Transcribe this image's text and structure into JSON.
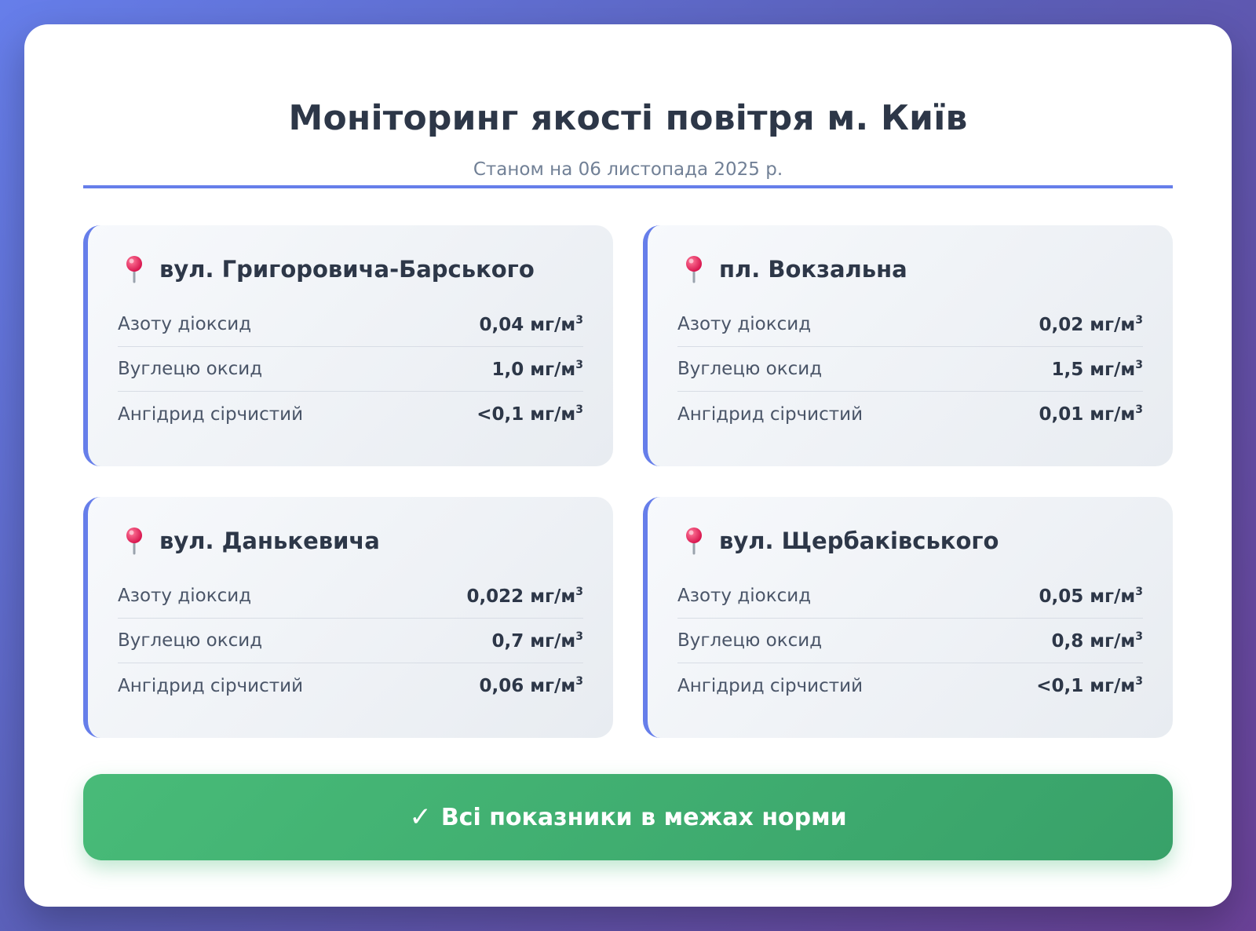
{
  "header": {
    "title": "Моніторинг якості повітря м. Київ",
    "subtitle": "Станом на 06 листопада 2025 р."
  },
  "unit": "мг/м",
  "unit_sup": "3",
  "stations": [
    {
      "name": "вул. Григоровича-Барського",
      "icon": "pin-icon",
      "measurements": [
        {
          "label": "Азоту діоксид",
          "value": "0,04"
        },
        {
          "label": "Вуглецю оксид",
          "value": "1,0"
        },
        {
          "label": "Ангідрид сірчистий",
          "value": "<0,1"
        }
      ]
    },
    {
      "name": "пл. Вокзальна",
      "icon": "pin-icon",
      "measurements": [
        {
          "label": "Азоту діоксид",
          "value": "0,02"
        },
        {
          "label": "Вуглецю оксид",
          "value": "1,5"
        },
        {
          "label": "Ангідрид сірчистий",
          "value": "0,01"
        }
      ]
    },
    {
      "name": "вул. Данькевича",
      "icon": "pin-icon",
      "measurements": [
        {
          "label": "Азоту діоксид",
          "value": "0,022"
        },
        {
          "label": "Вуглецю оксид",
          "value": "0,7"
        },
        {
          "label": "Ангідрид сірчистий",
          "value": "0,06"
        }
      ]
    },
    {
      "name": "вул. Щербаківського",
      "icon": "pin-icon",
      "measurements": [
        {
          "label": "Азоту діоксид",
          "value": "0,05"
        },
        {
          "label": "Вуглецю оксид",
          "value": "0,8"
        },
        {
          "label": "Ангідрид сірчистий",
          "value": "<0,1"
        }
      ]
    }
  ],
  "status": {
    "check": "✓",
    "text": "Всі показники в межах норми",
    "color": "#48bb78"
  },
  "colors": {
    "accent": "#667eea",
    "title": "#2d3748",
    "subtitle": "#718096"
  }
}
